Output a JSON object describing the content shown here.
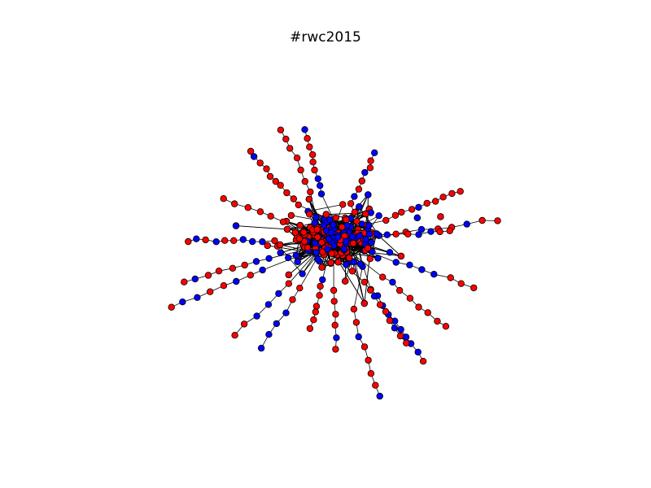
{
  "title": "#rwc2015",
  "graph": {
    "node_colors": {
      "group_a": "#ff0000",
      "group_b": "#0000ff"
    },
    "edge_color": "#000000",
    "node_outline": "#000000"
  }
}
